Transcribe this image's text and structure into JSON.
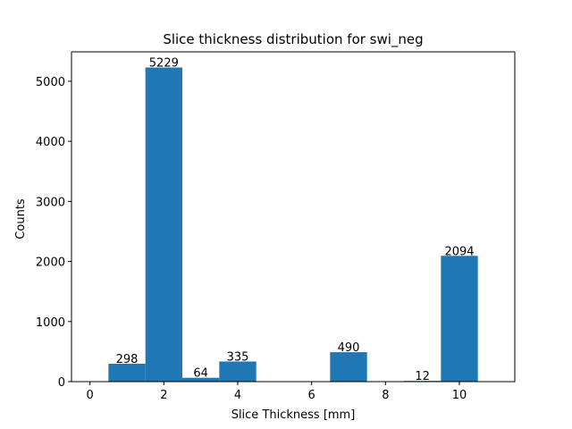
{
  "chart_data": {
    "type": "bar",
    "title": "Slice thickness distribution for swi_neg",
    "xlabel": "Slice Thickness [mm]",
    "ylabel": "Counts",
    "xlim": [
      -0.5,
      11.5
    ],
    "ylim": [
      0,
      5490
    ],
    "xticks": [
      0,
      2,
      4,
      6,
      8,
      10
    ],
    "yticks": [
      0,
      1000,
      2000,
      3000,
      4000,
      5000
    ],
    "bar_width": 1,
    "bar_color": "#1f77b4",
    "grid": false,
    "bars": [
      {
        "x": 1,
        "value": 298,
        "label": "298"
      },
      {
        "x": 2,
        "value": 5229,
        "label": "5229"
      },
      {
        "x": 3,
        "value": 64,
        "label": "64"
      },
      {
        "x": 4,
        "value": 335,
        "label": "335"
      },
      {
        "x": 7,
        "value": 490,
        "label": "490"
      },
      {
        "x": 9,
        "value": 12,
        "label": "12"
      },
      {
        "x": 10,
        "value": 2094,
        "label": "2094"
      }
    ]
  }
}
